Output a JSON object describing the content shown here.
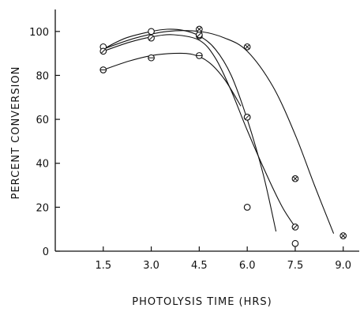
{
  "chart_data": {
    "type": "scatter",
    "title": "",
    "xlabel": "PHOTOLYSIS TIME (HRS)",
    "ylabel": "PERCENT CONVERSION",
    "x_ticks": [
      "1.5",
      "3.0",
      "4.5",
      "6.0",
      "7.5",
      "9.0"
    ],
    "y_ticks": [
      "0",
      "20",
      "40",
      "60",
      "80",
      "100"
    ],
    "xlim": [
      0,
      9.5
    ],
    "ylim": [
      0,
      110
    ],
    "grid": false,
    "legend": "none",
    "series": [
      {
        "marker": "open-circle",
        "points": [
          [
            1.5,
            93
          ],
          [
            3.0,
            100
          ],
          [
            4.5,
            98
          ],
          [
            6.0,
            61
          ],
          [
            6.0,
            20
          ],
          [
            7.5,
            3.5
          ]
        ],
        "curve": [
          [
            1.5,
            92
          ],
          [
            2.2,
            97
          ],
          [
            3.0,
            100
          ],
          [
            3.5,
            101
          ],
          [
            4.0,
            100.5
          ],
          [
            4.5,
            98
          ],
          [
            5.0,
            92
          ],
          [
            5.5,
            80
          ],
          [
            6.0,
            60
          ],
          [
            6.5,
            35
          ],
          [
            6.9,
            9
          ]
        ]
      },
      {
        "marker": "circle-slash",
        "points": [
          [
            1.5,
            91
          ],
          [
            3.0,
            97
          ],
          [
            4.5,
            98.5
          ],
          [
            6.0,
            61
          ],
          [
            7.5,
            11
          ]
        ],
        "curve": [
          [
            1.5,
            91
          ],
          [
            2.3,
            95
          ],
          [
            3.0,
            97.5
          ],
          [
            3.7,
            98.5
          ],
          [
            4.5,
            96
          ],
          [
            5.0,
            88
          ],
          [
            5.5,
            73
          ],
          [
            6.0,
            55
          ],
          [
            6.6,
            35
          ],
          [
            7.1,
            20
          ],
          [
            7.5,
            11
          ]
        ]
      },
      {
        "marker": "circle-cross",
        "points": [
          [
            4.5,
            101
          ],
          [
            6.0,
            93
          ],
          [
            7.5,
            33
          ],
          [
            9.0,
            7
          ]
        ],
        "curve": [
          [
            1.5,
            92
          ],
          [
            2.5,
            97
          ],
          [
            3.5,
            100
          ],
          [
            4.5,
            100
          ],
          [
            5.3,
            97
          ],
          [
            6.0,
            91
          ],
          [
            6.8,
            75
          ],
          [
            7.5,
            53
          ],
          [
            8.1,
            30
          ],
          [
            8.7,
            8
          ]
        ]
      },
      {
        "marker": "circle-hline",
        "points": [
          [
            1.5,
            82.5
          ],
          [
            3.0,
            88
          ],
          [
            4.5,
            89
          ]
        ],
        "curve": [
          [
            1.5,
            82.5
          ],
          [
            2.3,
            86.5
          ],
          [
            3.0,
            89
          ],
          [
            3.7,
            90
          ],
          [
            4.3,
            89.5
          ],
          [
            4.8,
            86
          ],
          [
            5.3,
            78
          ],
          [
            5.8,
            66
          ]
        ]
      }
    ]
  }
}
